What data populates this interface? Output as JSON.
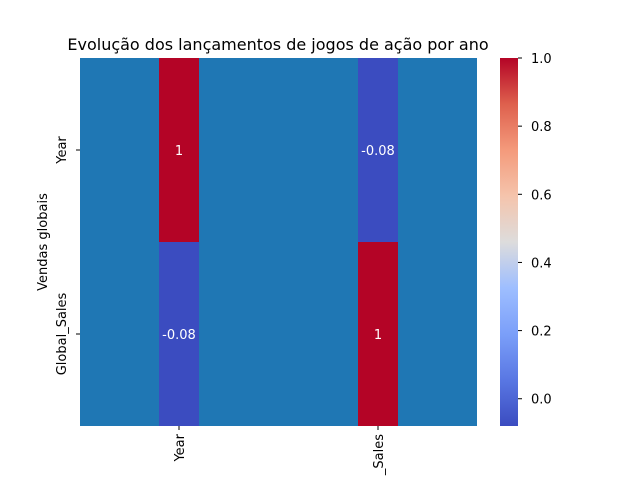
{
  "chart_data": {
    "type": "heatmap",
    "title": "Evolução dos lançamentos de jogos de ação por ano",
    "ylabel": "Vendas globais",
    "rows": [
      "Year",
      "Global_Sales"
    ],
    "cols": [
      "Year",
      "_Sales"
    ],
    "values": [
      [
        1,
        -0.08
      ],
      [
        -0.08,
        1
      ]
    ],
    "cell_labels": [
      [
        "1",
        "-0.08"
      ],
      [
        "-0.08",
        "1"
      ]
    ],
    "background_color": "#1f77b4",
    "colormap": "coolwarm",
    "colorbar": {
      "min": -0.08,
      "max": 1.0,
      "ticks": [
        0.0,
        0.2,
        0.4,
        0.6,
        0.8,
        1.0
      ],
      "tick_labels": [
        "0.0",
        "0.2",
        "0.4",
        "0.6",
        "0.8",
        "1.0"
      ]
    }
  }
}
